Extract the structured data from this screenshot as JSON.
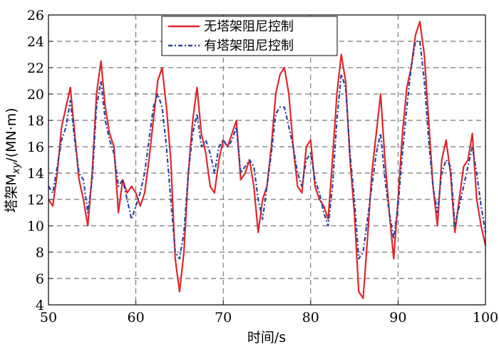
{
  "chart_data": {
    "type": "line",
    "xlabel": "时间/s",
    "ylabel": "塔架M",
    "ylabel_sub": "xy",
    "ylabel_unit": "/(MN·m)",
    "xlim": [
      50,
      100
    ],
    "ylim": [
      4,
      26
    ],
    "xticks": [
      50,
      60,
      70,
      80,
      90,
      100
    ],
    "yticks": [
      4,
      6,
      8,
      10,
      12,
      14,
      16,
      18,
      20,
      22,
      24,
      26
    ],
    "grid": true,
    "legend_position": "top-center",
    "series": [
      {
        "name": "无塔架阻尼控制",
        "color": "#e0262b",
        "dash": "solid",
        "x": [
          50,
          50.5,
          51,
          51.5,
          52,
          52.5,
          53,
          53.5,
          54,
          54.5,
          55,
          55.5,
          56,
          56.5,
          57,
          57.5,
          58,
          58.5,
          59,
          59.5,
          60,
          60.5,
          61,
          61.5,
          62,
          62.5,
          63,
          63.5,
          64,
          64.5,
          65,
          65.5,
          66,
          66.5,
          67,
          67.5,
          68,
          68.5,
          69,
          69.5,
          70,
          70.5,
          71,
          71.5,
          72,
          72.5,
          73,
          73.5,
          74,
          74.5,
          75,
          75.5,
          76,
          76.5,
          77,
          77.5,
          78,
          78.5,
          79,
          79.5,
          80,
          80.5,
          81,
          81.5,
          82,
          82.5,
          83,
          83.5,
          84,
          84.5,
          85,
          85.5,
          86,
          86.5,
          87,
          87.5,
          88,
          88.5,
          89,
          89.5,
          90,
          90.5,
          91,
          91.5,
          92,
          92.5,
          93,
          93.5,
          94,
          94.5,
          95,
          95.5,
          96,
          96.5,
          97,
          97.5,
          98,
          98.5,
          99,
          99.5,
          100
        ],
        "values": [
          12,
          11.5,
          14,
          17.5,
          19,
          20.5,
          17,
          13.5,
          12,
          10,
          14,
          20,
          22.5,
          19,
          17,
          16,
          11,
          13.5,
          12.5,
          13,
          12.5,
          11.5,
          12.5,
          15,
          18,
          21,
          22,
          19,
          15,
          7.5,
          5,
          8,
          14,
          18,
          20.5,
          17,
          15.5,
          13,
          12.5,
          15,
          16.5,
          16,
          17,
          18,
          13.5,
          14,
          15,
          13,
          9.5,
          12,
          13,
          16,
          20,
          21.5,
          22,
          20,
          16,
          13,
          12.5,
          16,
          16.5,
          13,
          12,
          11.5,
          10.5,
          15,
          20,
          23,
          21,
          15,
          11,
          5,
          4.5,
          9,
          14,
          17,
          20,
          15,
          11,
          7.5,
          12,
          17,
          20.5,
          22,
          24.5,
          25.5,
          23,
          18,
          13,
          10,
          15,
          16.5,
          14,
          9.5,
          12,
          14.5,
          15,
          17,
          12,
          10,
          8.5
        ]
      },
      {
        "name": "有塔架阻尼控制",
        "color": "#2a44a0",
        "dash": "6,3,2,3",
        "x": [
          50,
          50.5,
          51,
          51.5,
          52,
          52.5,
          53,
          53.5,
          54,
          54.5,
          55,
          55.5,
          56,
          56.5,
          57,
          57.5,
          58,
          58.5,
          59,
          59.5,
          60,
          60.5,
          61,
          61.5,
          62,
          62.5,
          63,
          63.5,
          64,
          64.5,
          65,
          65.5,
          66,
          66.5,
          67,
          67.5,
          68,
          68.5,
          69,
          69.5,
          70,
          70.5,
          71,
          71.5,
          72,
          72.5,
          73,
          73.5,
          74,
          74.5,
          75,
          75.5,
          76,
          76.5,
          77,
          77.5,
          78,
          78.5,
          79,
          79.5,
          80,
          80.5,
          81,
          81.5,
          82,
          82.5,
          83,
          83.5,
          84,
          84.5,
          85,
          85.5,
          86,
          86.5,
          87,
          87.5,
          88,
          88.5,
          89,
          89.5,
          90,
          90.5,
          91,
          91.5,
          92,
          92.5,
          93,
          93.5,
          94,
          94.5,
          95,
          95.5,
          96,
          96.5,
          97,
          97.5,
          98,
          98.5,
          99,
          99.5,
          100
        ],
        "values": [
          13,
          12.5,
          14.5,
          16.5,
          17.5,
          19.5,
          16.5,
          14,
          13.5,
          11,
          13.5,
          19,
          21,
          18,
          16.5,
          15.5,
          13,
          13.5,
          12,
          10.5,
          11.5,
          12.5,
          14,
          16.5,
          19,
          20,
          19,
          16,
          12,
          8,
          7.5,
          9.5,
          14,
          17,
          18.5,
          16,
          16.5,
          15.5,
          14,
          16,
          16.5,
          16,
          16.5,
          17.5,
          14,
          14.5,
          15,
          14.5,
          12,
          10.5,
          13,
          15.5,
          18.5,
          19,
          19,
          17.5,
          16,
          14,
          13,
          15,
          15.5,
          13.5,
          12.5,
          11,
          10,
          13,
          18,
          21.5,
          20.5,
          15.5,
          12,
          7.5,
          8,
          10.5,
          13,
          15.5,
          17,
          13.5,
          11,
          9,
          11.5,
          15.5,
          19,
          22,
          24,
          24,
          21,
          16.5,
          13,
          11,
          14,
          15,
          14.5,
          10,
          11.5,
          13,
          14.5,
          16,
          14,
          11.5,
          9.5
        ]
      }
    ]
  }
}
